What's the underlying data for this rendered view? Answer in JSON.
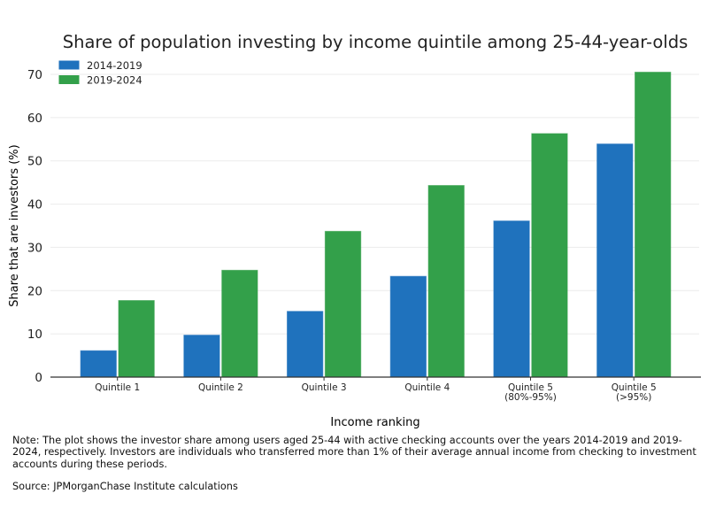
{
  "chart_data": {
    "type": "bar",
    "title": "Share of population investing by income quintile among 25-44-year-olds",
    "xlabel": "Income ranking",
    "ylabel": "Share that are investors (%)",
    "ylim": [
      0,
      70
    ],
    "yticks": [
      "0",
      "10",
      "20",
      "30",
      "40",
      "50",
      "60",
      "70"
    ],
    "grid": true,
    "legend_placement": "top-left",
    "categories": [
      [
        "Quintile 1"
      ],
      [
        "Quintile 2"
      ],
      [
        "Quintile 3"
      ],
      [
        "Quintile 4"
      ],
      [
        "Quintile 5",
        "(80%-95%)"
      ],
      [
        "Quintile 5",
        "(>95%)"
      ]
    ],
    "series": [
      {
        "name": "2014-2019",
        "color": "#1f72bd",
        "values": [
          6.1,
          9.7,
          15.2,
          23.3,
          36.1,
          53.9
        ]
      },
      {
        "name": "2019-2024",
        "color": "#33a04a",
        "values": [
          17.7,
          24.7,
          33.7,
          44.3,
          56.3,
          70.5
        ]
      }
    ]
  },
  "note": "Note: The plot shows the investor share among users aged 25-44 with active checking accounts over the years 2014-2019 and 2019-2024, respectively. Investors are individuals who transferred more than 1% of their average annual income from checking to investment accounts during these periods.",
  "source": "Source: JPMorganChase Institute calculations"
}
